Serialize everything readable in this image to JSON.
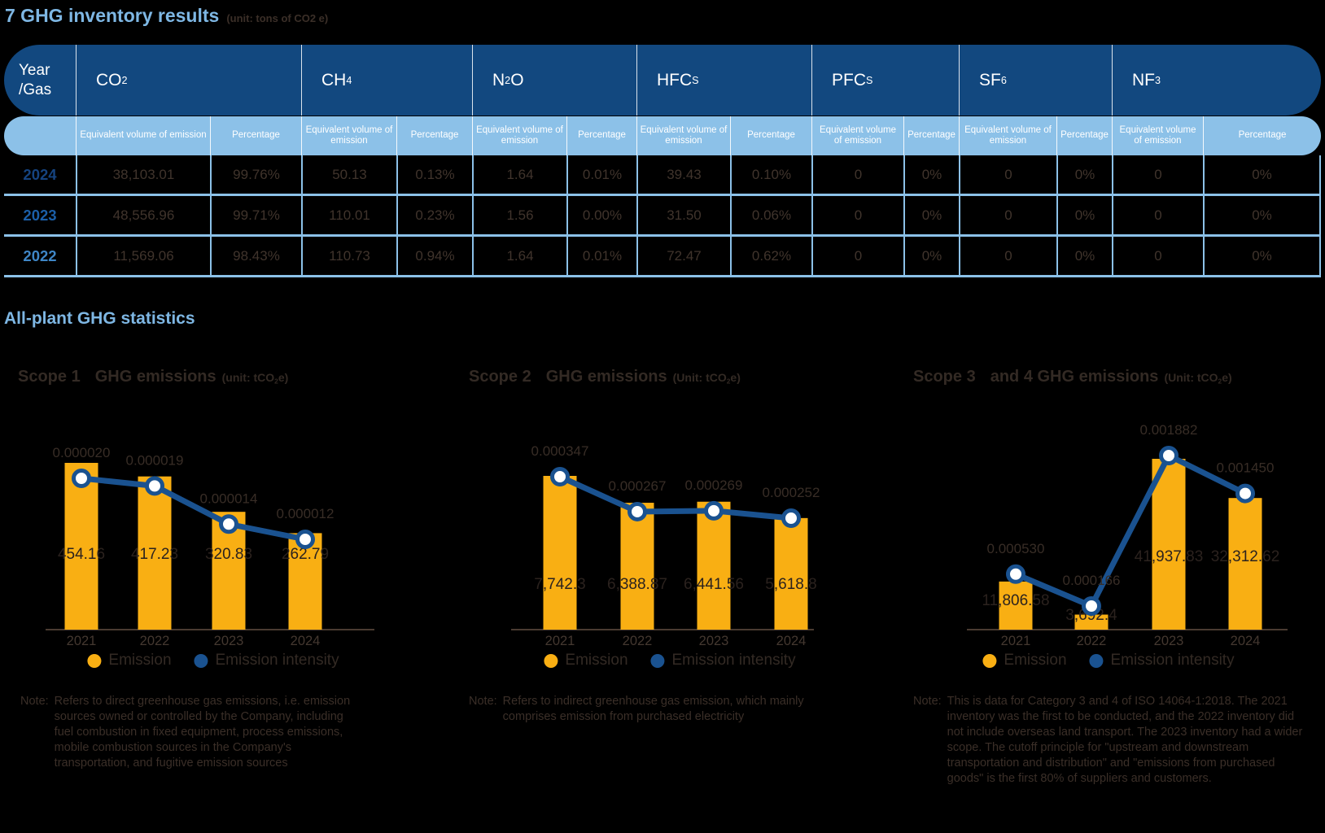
{
  "colors": {
    "heading_blue": "#7eb7e4",
    "table_header_blue": "#12487f",
    "table_light_blue": "#8cc1e8",
    "bar_yellow": "#f9af13",
    "line_blue": "#1a5290",
    "ink": "#362b25",
    "year_2024": "#15437f",
    "year_2023": "#1b5fa8",
    "year_2022": "#3f86c6"
  },
  "strings": {
    "note_label": "Note:"
  },
  "header": {
    "title": "7 GHG inventory results",
    "title_unit": "(unit: tons of CO2 e)"
  },
  "section": {
    "title": "All-plant GHG statistics"
  },
  "table": {
    "corner": [
      "Year",
      "/Gas"
    ],
    "sub_headers": {
      "volume": "Equivalent volume of emission",
      "percentage": "Percentage"
    },
    "gases": [
      {
        "parts": [
          {
            "t": "CO"
          },
          {
            "t": "2",
            "sub": true
          }
        ]
      },
      {
        "parts": [
          {
            "t": "CH"
          },
          {
            "t": "4",
            "sub": true
          }
        ]
      },
      {
        "parts": [
          {
            "t": "N"
          },
          {
            "t": "2",
            "sub": true
          },
          {
            "t": "O"
          }
        ]
      },
      {
        "parts": [
          {
            "t": "HFC"
          },
          {
            "t": "S",
            "sub": true
          }
        ]
      },
      {
        "parts": [
          {
            "t": "PFC"
          },
          {
            "t": "S",
            "sub": true
          }
        ]
      },
      {
        "parts": [
          {
            "t": "SF"
          },
          {
            "t": "6",
            "sub": true
          }
        ]
      },
      {
        "parts": [
          {
            "t": "NF"
          },
          {
            "t": "3",
            "sub": true
          }
        ]
      }
    ],
    "rows": [
      {
        "year": "2024",
        "cells": [
          "38,103.01",
          "99.76%",
          "50.13",
          "0.13%",
          "1.64",
          "0.01%",
          "39.43",
          "0.10%",
          "0",
          "0%",
          "0",
          "0%",
          "0",
          "0%"
        ]
      },
      {
        "year": "2023",
        "cells": [
          "48,556.96",
          "99.71%",
          "110.01",
          "0.23%",
          "1.56",
          "0.00%",
          "31.50",
          "0.06%",
          "0",
          "0%",
          "0",
          "0%",
          "0",
          "0%"
        ]
      },
      {
        "year": "2022",
        "cells": [
          "11,569.06",
          "98.43%",
          "110.73",
          "0.94%",
          "1.64",
          "0.01%",
          "72.47",
          "0.62%",
          "0",
          "0%",
          "0",
          "0%",
          "0",
          "0%"
        ]
      }
    ]
  },
  "chart_data": [
    {
      "type": "bar+line",
      "title_prefix": "Scope 1",
      "title_rest": "GHG emissions",
      "unit_parts": [
        {
          "t": "(unit: tCO"
        },
        {
          "t": "2",
          "sub": true
        },
        {
          "t": "e)"
        }
      ],
      "categories": [
        "2021",
        "2022",
        "2023",
        "2024"
      ],
      "series": [
        {
          "name": "Emission",
          "kind": "bar",
          "values": [
            454.16,
            417.23,
            320.83,
            262.79
          ],
          "labels": [
            "454.16",
            "417.23",
            "320.83",
            "262.79"
          ]
        },
        {
          "name": "Emission intensity",
          "kind": "line",
          "values": [
            2e-05,
            1.9e-05,
            1.4e-05,
            1.2e-05
          ],
          "labels": [
            "0.000020",
            "0.000019",
            "0.000014",
            "0.000012"
          ]
        }
      ],
      "legend_position": "bottom",
      "note": "Refers to direct greenhouse gas emissions, i.e. emission sources owned or controlled by the Company, including fuel combustion in fixed equipment, process emissions, mobile combustion sources in the Company's transportation, and fugitive emission sources"
    },
    {
      "type": "bar+line",
      "title_prefix": "Scope 2",
      "title_rest": "GHG emissions",
      "unit_parts": [
        {
          "t": "(Unit: tCO"
        },
        {
          "t": "2",
          "sub": true
        },
        {
          "t": "e)"
        }
      ],
      "categories": [
        "2021",
        "2022",
        "2023",
        "2024"
      ],
      "series": [
        {
          "name": "Emission",
          "kind": "bar",
          "values": [
            7742.3,
            6388.87,
            6441.56,
            5618.8
          ],
          "labels": [
            "7,742.3",
            "6,388.87",
            "6,441.56",
            "5,618.8"
          ]
        },
        {
          "name": "Emission intensity",
          "kind": "line",
          "values": [
            0.000347,
            0.000267,
            0.000269,
            0.000252
          ],
          "labels": [
            "0.000347",
            "0.000267",
            "0.000269",
            "0.000252"
          ]
        }
      ],
      "legend_position": "bottom",
      "note": "Refers to indirect greenhouse gas emission, which mainly comprises emission from purchased electricity"
    },
    {
      "type": "bar+line",
      "title_prefix": "Scope 3",
      "title_rest": "and 4 GHG emissions",
      "unit_parts": [
        {
          "t": "(Unit: tCO"
        },
        {
          "t": "2",
          "sub": true
        },
        {
          "t": "e)"
        }
      ],
      "categories": [
        "2021",
        "2022",
        "2023",
        "2024"
      ],
      "series": [
        {
          "name": "Emission",
          "kind": "bar",
          "values": [
            11806.58,
            3692.4,
            41937.83,
            32312.62
          ],
          "labels": [
            "11,806.58",
            "3,692.4",
            "41,937.83",
            "32,312.62"
          ]
        },
        {
          "name": "Emission intensity",
          "kind": "line",
          "values": [
            0.00053,
            0.000166,
            0.001882,
            0.00145
          ],
          "labels": [
            "0.000530",
            "0.000166",
            "0.001882",
            "0.001450"
          ]
        }
      ],
      "legend_position": "bottom",
      "note": "This is data for Category 3 and 4 of ISO 14064-1:2018. The 2021 inventory was the first to be conducted, and the 2022 inventory did not include overseas land transport. The 2023 inventory had a wider scope. The cutoff principle for \"upstream and downstream transportation and distribution\" and \"emissions from purchased goods\" is the first 80% of suppliers and customers."
    }
  ]
}
